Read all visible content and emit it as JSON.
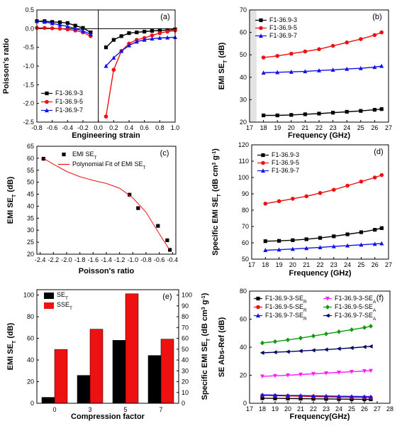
{
  "colors": {
    "black": "#000000",
    "red": "#ee1111",
    "blue": "#1111ee",
    "magenta": "#ff22ff",
    "green": "#119911",
    "navy": "#000066"
  },
  "chart_data": [
    {
      "id": "a",
      "panel_label": "(a)",
      "type": "line",
      "xlabel": "Engineering strain",
      "ylabel": "Poisson's  ratio",
      "xlim": [
        -0.8,
        1.0
      ],
      "ylim": [
        -2.5,
        0.5
      ],
      "xticks": [
        -0.8,
        -0.6,
        -0.4,
        -0.2,
        0.0,
        0.2,
        0.4,
        0.6,
        0.8,
        1.0
      ],
      "xtick_labels": [
        "-0.8",
        "-0.6",
        "-0.4",
        "-0.2",
        "0.0",
        "0.2",
        "0.4",
        "0.6",
        "0.8",
        "1.0"
      ],
      "yticks": [
        -2.5,
        -2.0,
        -1.5,
        -1.0,
        -0.5,
        0.0,
        0.5
      ],
      "ytick_labels": [
        "-2.5",
        "-2.0",
        "-1.5",
        "-1.0",
        "-0.5",
        "0.0",
        "0.5"
      ],
      "legend_position": "lower-left",
      "series": [
        {
          "name": "F1-36.9-3",
          "color": "#000000",
          "marker": "square",
          "segments": [
            {
              "x": [
                -0.8,
                -0.7,
                -0.6,
                -0.5,
                -0.4,
                -0.3,
                -0.2,
                -0.1
              ],
              "y": [
                0.2,
                0.2,
                0.18,
                0.17,
                0.15,
                0.08,
                0.02,
                -0.1
              ]
            },
            {
              "x": [
                0.1,
                0.2,
                0.3,
                0.4,
                0.5,
                0.6,
                0.7,
                0.8,
                0.9,
                1.0
              ],
              "y": [
                -0.5,
                -0.3,
                -0.2,
                -0.12,
                -0.1,
                -0.08,
                -0.06,
                -0.05,
                -0.04,
                -0.02
              ]
            }
          ]
        },
        {
          "name": "F1-36.9-5",
          "color": "#ee1111",
          "marker": "circle",
          "segments": [
            {
              "x": [
                -0.8,
                -0.7,
                -0.6,
                -0.5,
                -0.4,
                -0.3,
                -0.2,
                -0.1
              ],
              "y": [
                0.02,
                0.02,
                0.01,
                0.0,
                -0.02,
                -0.05,
                -0.1,
                -0.2
              ]
            },
            {
              "x": [
                0.1,
                0.2,
                0.3,
                0.4,
                0.5,
                0.6,
                0.7,
                0.8,
                0.9,
                1.0
              ],
              "y": [
                -2.35,
                -1.1,
                -0.6,
                -0.4,
                -0.3,
                -0.25,
                -0.18,
                -0.12,
                -0.08,
                -0.05
              ]
            }
          ]
        },
        {
          "name": "F1-36.9-7",
          "color": "#1111ee",
          "marker": "triangle",
          "segments": [
            {
              "x": [
                -0.8,
                -0.7,
                -0.6,
                -0.5,
                -0.4,
                -0.3,
                -0.2,
                -0.1
              ],
              "y": [
                0.2,
                0.18,
                0.14,
                0.1,
                0.06,
                0.0,
                -0.06,
                -0.15
              ]
            },
            {
              "x": [
                0.1,
                0.2,
                0.3,
                0.4,
                0.5,
                0.6,
                0.7,
                0.8,
                0.9,
                1.0
              ],
              "y": [
                -1.0,
                -0.78,
                -0.6,
                -0.45,
                -0.35,
                -0.3,
                -0.27,
                -0.25,
                -0.24,
                -0.23
              ]
            }
          ]
        }
      ]
    },
    {
      "id": "b",
      "panel_label": "(b)",
      "type": "line",
      "xlabel": "Frequency (GHz)",
      "ylabel": "EMI SE",
      "ylabel_sub": "T",
      "ylabel_suffix": " (dB)",
      "xlim": [
        17,
        27
      ],
      "ylim": [
        20,
        70
      ],
      "xticks": [
        17,
        18,
        19,
        20,
        21,
        22,
        23,
        24,
        25,
        26,
        27
      ],
      "xtick_labels": [
        "17",
        "18",
        "19",
        "20",
        "21",
        "22",
        "23",
        "24",
        "25",
        "26",
        "27"
      ],
      "yticks": [
        20,
        30,
        40,
        50,
        60,
        70
      ],
      "ytick_labels": [
        "20",
        "30",
        "40",
        "50",
        "60",
        "70"
      ],
      "legend_position": "top-left",
      "series": [
        {
          "name": "F1-36.9-3",
          "color": "#000000",
          "marker": "square",
          "x": [
            18,
            19,
            20,
            21,
            22,
            23,
            24,
            25,
            26,
            26.5
          ],
          "y": [
            23,
            23,
            23.2,
            23.5,
            23.8,
            24.2,
            24.6,
            25,
            25.5,
            25.8
          ]
        },
        {
          "name": "F1-36.9-5",
          "color": "#ee1111",
          "marker": "circle",
          "x": [
            18,
            19,
            20,
            21,
            22,
            23,
            24,
            25,
            26,
            26.5
          ],
          "y": [
            48.8,
            49.5,
            50.5,
            51.5,
            52.5,
            54,
            55.5,
            57,
            58.8,
            60
          ]
        },
        {
          "name": "F1-36.9-7",
          "color": "#1111ee",
          "marker": "triangle",
          "x": [
            18,
            19,
            20,
            21,
            22,
            23,
            24,
            25,
            26,
            26.5
          ],
          "y": [
            42,
            42.2,
            42.4,
            42.6,
            43,
            43.3,
            43.7,
            44,
            44.5,
            45
          ]
        }
      ]
    },
    {
      "id": "c",
      "panel_label": "(c)",
      "type": "scatter",
      "xlabel": "Poisson's  ratio",
      "ylabel": "EMI SE",
      "ylabel_sub": "T",
      "ylabel_suffix": " (dB)",
      "xlim": [
        -2.45,
        -0.35
      ],
      "ylim": [
        20,
        65
      ],
      "xticks": [
        -2.4,
        -2.2,
        -2.0,
        -1.8,
        -1.6,
        -1.4,
        -1.2,
        -1.0,
        -0.8,
        -0.6,
        -0.4
      ],
      "xtick_labels": [
        "-2.4",
        "-2.2",
        "-2.0",
        "-1.8",
        "-1.6",
        "-1.4",
        "-1.2",
        "-1.0",
        "-0.8",
        "-0.6",
        "-0.4"
      ],
      "yticks": [
        20,
        25,
        30,
        35,
        40,
        45,
        50,
        55,
        60,
        65
      ],
      "ytick_labels": [
        "20",
        "25",
        "30",
        "35",
        "40",
        "45",
        "50",
        "55",
        "60",
        "65"
      ],
      "legend_position": "top-center",
      "series": [
        {
          "name": "EMI SE",
          "name_sub": "T",
          "color": "#000000",
          "marker": "square",
          "x": [
            -2.35,
            -1.05,
            -0.92,
            -0.62,
            -0.48,
            -0.44
          ],
          "y": [
            59.8,
            44.8,
            39.2,
            31.8,
            25.8,
            21.8
          ]
        },
        {
          "name": "Polynomial Fit of EMI SE",
          "name_sub": "T",
          "color": "#ee1111",
          "marker": "none",
          "x": [
            -2.35,
            -2.2,
            -2.0,
            -1.8,
            -1.6,
            -1.4,
            -1.2,
            -1.0,
            -0.8,
            -0.6,
            -0.45
          ],
          "y": [
            60,
            57.5,
            54.5,
            52.3,
            50.8,
            49.5,
            47.5,
            43.5,
            37.5,
            28.5,
            22
          ]
        }
      ]
    },
    {
      "id": "d",
      "panel_label": "(d)",
      "type": "line",
      "xlabel": "Frequency (GHz)",
      "ylabel": "Specific EMI SE",
      "ylabel_sub": "T",
      "ylabel_suffix": " (dB cm",
      "ylabel_sup1": "3",
      "ylabel_mid": " g",
      "ylabel_sup2": "-1",
      "ylabel_end": ")",
      "xlim": [
        17,
        27
      ],
      "ylim": [
        50,
        120
      ],
      "xticks": [
        17,
        18,
        19,
        20,
        21,
        22,
        23,
        24,
        25,
        26,
        27
      ],
      "xtick_labels": [
        "17",
        "18",
        "19",
        "20",
        "21",
        "22",
        "23",
        "24",
        "25",
        "26",
        "27"
      ],
      "yticks": [
        50,
        60,
        70,
        80,
        90,
        100,
        110,
        120
      ],
      "ytick_labels": [
        "50",
        "60",
        "70",
        "80",
        "90",
        "100",
        "110",
        "120"
      ],
      "legend_position": "top-left",
      "series": [
        {
          "name": "F1-36.9-3",
          "color": "#000000",
          "marker": "square",
          "x": [
            18,
            19,
            20,
            21,
            22,
            23,
            24,
            25,
            26,
            26.5
          ],
          "y": [
            61,
            61.2,
            61.6,
            62.2,
            63,
            64,
            65.2,
            66.5,
            68,
            69
          ]
        },
        {
          "name": "F1-36.9-5",
          "color": "#ee1111",
          "marker": "circle",
          "x": [
            18,
            19,
            20,
            21,
            22,
            23,
            24,
            25,
            26,
            26.5
          ],
          "y": [
            84,
            85.5,
            87,
            88.5,
            90.5,
            92.5,
            95,
            97.5,
            100,
            101.5
          ]
        },
        {
          "name": "F1-36.9-7",
          "color": "#1111ee",
          "marker": "triangle",
          "x": [
            18,
            19,
            20,
            21,
            22,
            23,
            24,
            25,
            26,
            26.5
          ],
          "y": [
            55.5,
            55.8,
            56.2,
            56.7,
            57.2,
            57.8,
            58.3,
            58.8,
            59.3,
            59.6
          ]
        }
      ]
    },
    {
      "id": "e",
      "panel_label": "(e)",
      "type": "bar",
      "xlabel": "Compression factor",
      "ylabel": "EMI SE",
      "ylabel_sub": "T",
      "ylabel_suffix": " (dB)",
      "y2label": "Specific EMI SE",
      "y2label_sub": "T",
      "y2label_suffix": " (dB cm",
      "y2label_sup1": "3",
      "y2label_mid": " g",
      "y2label_sup2": "-1",
      "y2label_end": ")",
      "categories": [
        "0",
        "3",
        "5",
        "7"
      ],
      "ylim": [
        0,
        105
      ],
      "y2lim": [
        0,
        105
      ],
      "yticks": [
        0,
        20,
        40,
        60,
        80,
        100
      ],
      "ytick_labels": [
        "0",
        "20",
        "40",
        "60",
        "80",
        "100"
      ],
      "y2ticks": [
        0,
        10,
        20,
        30,
        40,
        50,
        60,
        70,
        80,
        90,
        100
      ],
      "y2tick_labels": [
        "0",
        "10",
        "20",
        "30",
        "40",
        "50",
        "60",
        "70",
        "80",
        "90",
        "100"
      ],
      "legend_position": "top-left",
      "series": [
        {
          "name": "SE",
          "name_sub": "T",
          "color": "#000000",
          "axis": "left",
          "values": [
            5.5,
            25.8,
            58.2,
            44.2
          ]
        },
        {
          "name": "SSE",
          "name_sub": "T",
          "color": "#ee1111",
          "axis": "right",
          "values": [
            49.8,
            68.5,
            101.2,
            59.3
          ]
        }
      ]
    },
    {
      "id": "f",
      "panel_label": "(f)",
      "type": "line",
      "xlabel": "Frequency(GHz)",
      "ylabel": "SE Abs-Ref (dB)",
      "xlim": [
        17,
        28
      ],
      "ylim": [
        0,
        80
      ],
      "xticks": [
        17,
        18,
        19,
        20,
        21,
        22,
        23,
        24,
        25,
        26,
        27,
        28
      ],
      "xtick_labels": [
        "17",
        "18",
        "19",
        "20",
        "21",
        "22",
        "23",
        "24",
        "25",
        "26",
        "27",
        "28"
      ],
      "yticks": [
        0,
        20,
        40,
        60,
        80
      ],
      "ytick_labels": [
        "0",
        "20",
        "40",
        "60",
        "80"
      ],
      "legend_position": "top",
      "series": [
        {
          "name": "F1-36.9-3-SE",
          "name_sub": "R",
          "color": "#000000",
          "marker": "square",
          "x": [
            18,
            19,
            20,
            21,
            22,
            23,
            24,
            25,
            26,
            26.5
          ],
          "y": [
            3.6,
            3.5,
            3.4,
            3.3,
            3.2,
            3.1,
            3.0,
            2.9,
            2.8,
            2.8
          ]
        },
        {
          "name": "F1-36.9-3-SE",
          "name_sub": "A",
          "color": "#ff22ff",
          "marker": "triangle-down",
          "x": [
            18,
            19,
            20,
            21,
            22,
            23,
            24,
            25,
            26,
            26.5
          ],
          "y": [
            19.2,
            19.6,
            20,
            20.5,
            21,
            21.5,
            22,
            22.5,
            23,
            23.2
          ]
        },
        {
          "name": "F1-36.9-5-SE",
          "name_sub": "R",
          "color": "#ee1111",
          "marker": "circle",
          "x": [
            18,
            19,
            20,
            21,
            22,
            23,
            24,
            25,
            26,
            26.5
          ],
          "y": [
            5.6,
            5.4,
            5.2,
            5.0,
            4.8,
            4.6,
            4.4,
            4.3,
            4.2,
            4.1
          ]
        },
        {
          "name": "F1-36.9-5-SE",
          "name_sub": "A",
          "color": "#119911",
          "marker": "diamond",
          "x": [
            18,
            19,
            20,
            21,
            22,
            23,
            24,
            25,
            26,
            26.5
          ],
          "y": [
            43,
            44,
            45.2,
            46.5,
            48,
            49.5,
            51,
            52.5,
            54,
            55
          ]
        },
        {
          "name": "F1-36.9-7-SE",
          "name_sub": "R",
          "color": "#1111ee",
          "marker": "triangle",
          "x": [
            18,
            19,
            20,
            21,
            22,
            23,
            24,
            25,
            26,
            26.5
          ],
          "y": [
            6.0,
            5.8,
            5.6,
            5.5,
            5.3,
            5.2,
            5.0,
            4.9,
            4.8,
            4.7
          ]
        },
        {
          "name": "F1-36.9-7-SE",
          "name_sub": "A",
          "color": "#000066",
          "marker": "triangle-left",
          "x": [
            18,
            19,
            20,
            21,
            22,
            23,
            24,
            25,
            26,
            26.5
          ],
          "y": [
            36,
            36.4,
            36.8,
            37.3,
            37.8,
            38.3,
            38.9,
            39.5,
            40.2,
            40.6
          ]
        }
      ]
    }
  ]
}
